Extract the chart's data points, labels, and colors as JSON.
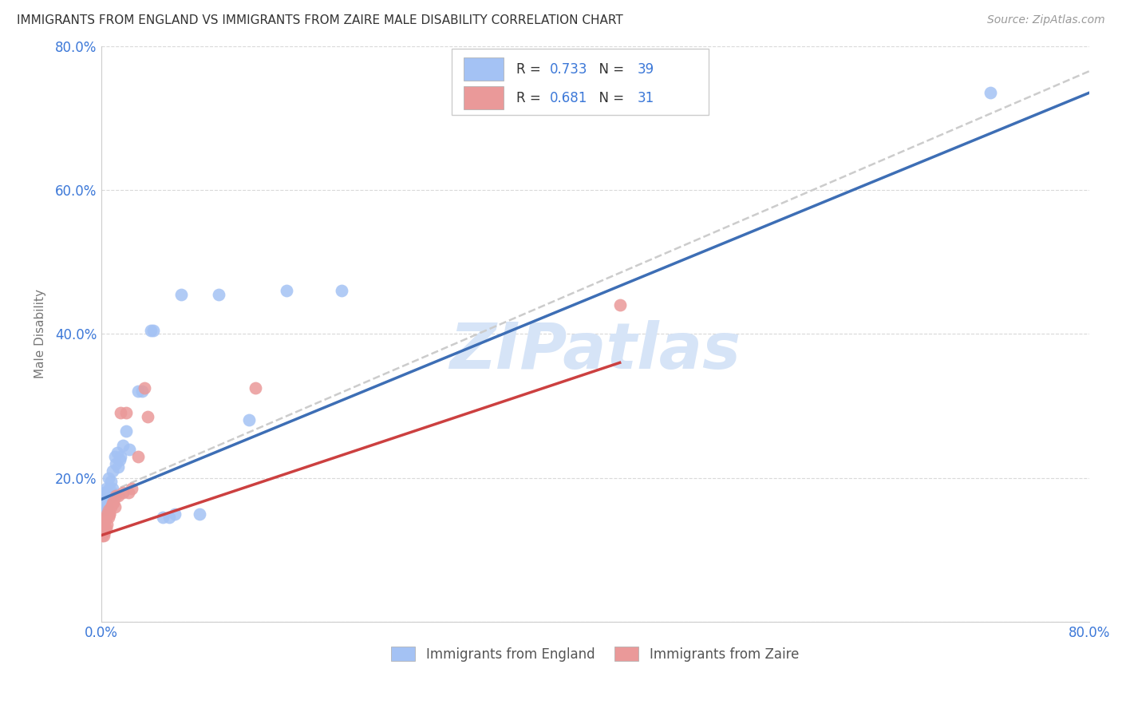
{
  "title": "IMMIGRANTS FROM ENGLAND VS IMMIGRANTS FROM ZAIRE MALE DISABILITY CORRELATION CHART",
  "source": "Source: ZipAtlas.com",
  "ylabel": "Male Disability",
  "xlim": [
    0.0,
    0.8
  ],
  "ylim": [
    0.0,
    0.8
  ],
  "england_R": 0.733,
  "england_N": 39,
  "zaire_R": 0.681,
  "zaire_N": 31,
  "england_color": "#a4c2f4",
  "zaire_color": "#ea9999",
  "england_line_color": "#3d6eb5",
  "zaire_line_color": "#cc4040",
  "trendline_dashes_color": "#cccccc",
  "background_color": "#ffffff",
  "grid_color": "#d0d0d0",
  "watermark_color": "#d6e4f7",
  "england_x": [
    0.002,
    0.003,
    0.003,
    0.004,
    0.004,
    0.005,
    0.005,
    0.006,
    0.006,
    0.007,
    0.007,
    0.008,
    0.008,
    0.009,
    0.009,
    0.01,
    0.011,
    0.012,
    0.013,
    0.014,
    0.015,
    0.016,
    0.018,
    0.02,
    0.023,
    0.03,
    0.033,
    0.04,
    0.042,
    0.05,
    0.055,
    0.06,
    0.065,
    0.08,
    0.095,
    0.12,
    0.15,
    0.195,
    0.72
  ],
  "england_y": [
    0.155,
    0.165,
    0.18,
    0.175,
    0.185,
    0.16,
    0.17,
    0.175,
    0.2,
    0.175,
    0.185,
    0.175,
    0.195,
    0.185,
    0.21,
    0.175,
    0.23,
    0.22,
    0.235,
    0.215,
    0.225,
    0.23,
    0.245,
    0.265,
    0.24,
    0.32,
    0.32,
    0.405,
    0.405,
    0.145,
    0.145,
    0.15,
    0.455,
    0.15,
    0.455,
    0.28,
    0.46,
    0.46,
    0.735
  ],
  "zaire_x": [
    0.001,
    0.001,
    0.002,
    0.002,
    0.003,
    0.003,
    0.003,
    0.004,
    0.004,
    0.005,
    0.005,
    0.006,
    0.006,
    0.007,
    0.007,
    0.008,
    0.009,
    0.01,
    0.011,
    0.012,
    0.014,
    0.016,
    0.018,
    0.02,
    0.022,
    0.025,
    0.03,
    0.035,
    0.038,
    0.125,
    0.42
  ],
  "zaire_y": [
    0.12,
    0.13,
    0.12,
    0.135,
    0.125,
    0.13,
    0.14,
    0.13,
    0.145,
    0.135,
    0.15,
    0.145,
    0.155,
    0.15,
    0.15,
    0.16,
    0.165,
    0.165,
    0.16,
    0.175,
    0.175,
    0.29,
    0.18,
    0.29,
    0.18,
    0.185,
    0.23,
    0.325,
    0.285,
    0.325,
    0.44
  ],
  "england_line_x0": 0.0,
  "england_line_x1": 0.8,
  "england_line_y0": 0.17,
  "england_line_y1": 0.735,
  "zaire_line_x0": 0.0,
  "zaire_line_x1": 0.42,
  "zaire_line_y0": 0.12,
  "zaire_line_y1": 0.36,
  "dash_line_x0": 0.0,
  "dash_line_x1": 0.8,
  "dash_line_y0": 0.175,
  "dash_line_y1": 0.765
}
